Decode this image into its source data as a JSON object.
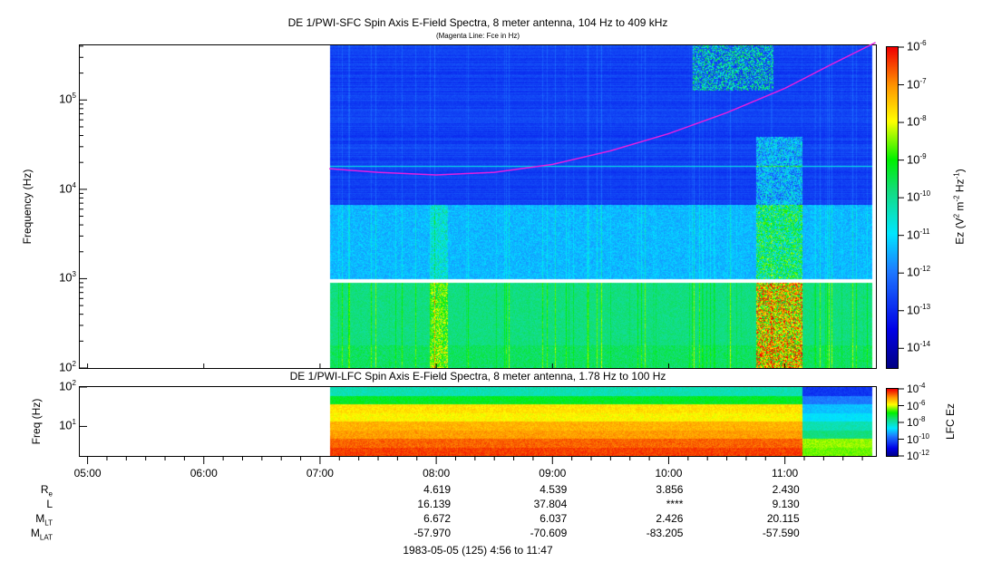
{
  "chart_data": [
    {
      "type": "heatmap",
      "title": "DE 1/PWI-SFC  Spin Axis E-Field Spectra, 8 meter antenna, 104 Hz to 409 kHz",
      "subtitle": "(Magenta Line: Fce in Hz)",
      "ylabel": "Frequency (Hz)",
      "yscale": "log",
      "ylim": [
        100,
        409000
      ],
      "yticks": [
        {
          "v": 100,
          "m": "2"
        },
        {
          "v": 1000,
          "m": "3"
        },
        {
          "v": 10000,
          "m": "4"
        },
        {
          "v": 100000,
          "m": "5"
        }
      ],
      "x_range_hours": [
        4.933,
        11.783
      ],
      "data_start_hours": 7.08,
      "colorbar": {
        "label_main": "Ez (V",
        "label_rest": " m",
        "label_hz": " Hz",
        "exp2": "2",
        "expm2": "-2",
        "expm1": "-1",
        "scale": "log",
        "range": [
          3e-15,
          1e-06
        ],
        "ticks": [
          {
            "v": 1e-06,
            "m": "-6"
          },
          {
            "v": 1e-07,
            "m": "-7"
          },
          {
            "v": 1e-08,
            "m": "-8"
          },
          {
            "v": 1e-09,
            "m": "-9"
          },
          {
            "v": 1e-10,
            "m": "-10"
          },
          {
            "v": 1e-11,
            "m": "-11"
          },
          {
            "v": 1e-12,
            "m": "-12"
          },
          {
            "v": 1e-13,
            "m": "-13"
          },
          {
            "v": 1e-14,
            "m": "-14"
          }
        ]
      },
      "fce_line": {
        "color": "#e020e0",
        "points": [
          [
            7.08,
            17000
          ],
          [
            7.5,
            15500
          ],
          [
            8.0,
            14500
          ],
          [
            8.5,
            15500
          ],
          [
            9.0,
            19000
          ],
          [
            9.5,
            27000
          ],
          [
            10.0,
            42000
          ],
          [
            10.5,
            72000
          ],
          [
            11.0,
            135000
          ],
          [
            11.4,
            250000
          ],
          [
            11.78,
            440000
          ]
        ]
      }
    },
    {
      "type": "heatmap",
      "title": "DE 1/PWI-LFC  Spin Axis E-Field Spectra, 8 meter antenna, 1.78 Hz to 100 Hz",
      "ylabel": "Freq (Hz)",
      "yscale": "log",
      "ylim": [
        1.78,
        100
      ],
      "yticks": [
        {
          "v": 10,
          "m": "1"
        },
        {
          "v": 100,
          "m": "2"
        }
      ],
      "colorbar": {
        "label": "LFC Ez",
        "scale": "log",
        "range": [
          1e-12,
          0.0001
        ],
        "ticks": [
          {
            "v": 0.0001,
            "m": "-4"
          },
          {
            "v": 1e-06,
            "m": "-6"
          },
          {
            "v": 1e-08,
            "m": "-8"
          },
          {
            "v": 1e-10,
            "m": "-10"
          },
          {
            "v": 1e-12,
            "m": "-12"
          }
        ]
      }
    }
  ],
  "xaxis": {
    "ticks": [
      {
        "h": 5,
        "label": "05:00"
      },
      {
        "h": 6,
        "label": "06:00"
      },
      {
        "h": 7,
        "label": "07:00"
      },
      {
        "h": 8,
        "label": "08:00"
      },
      {
        "h": 9,
        "label": "09:00"
      },
      {
        "h": 10,
        "label": "10:00"
      },
      {
        "h": 11,
        "label": "11:00"
      }
    ]
  },
  "ephemeris": {
    "rows": [
      {
        "label": "R",
        "sub": "e",
        "values": [
          "4.619",
          "4.539",
          "3.856",
          "2.430"
        ]
      },
      {
        "label": "L",
        "sub": "",
        "values": [
          "16.139",
          "37.804",
          "****",
          "9.130"
        ]
      },
      {
        "label": "M",
        "sub": "LT",
        "values": [
          "6.672",
          "6.037",
          "2.426",
          "20.115"
        ]
      },
      {
        "label": "M",
        "sub": "LAT",
        "values": [
          "-57.970",
          "-70.609",
          "-83.205",
          "-57.590"
        ]
      }
    ],
    "hours": [
      8,
      9,
      10,
      11
    ]
  },
  "date_range": "1983-05-05 (125) 4:56 to 11:47",
  "base": "10"
}
